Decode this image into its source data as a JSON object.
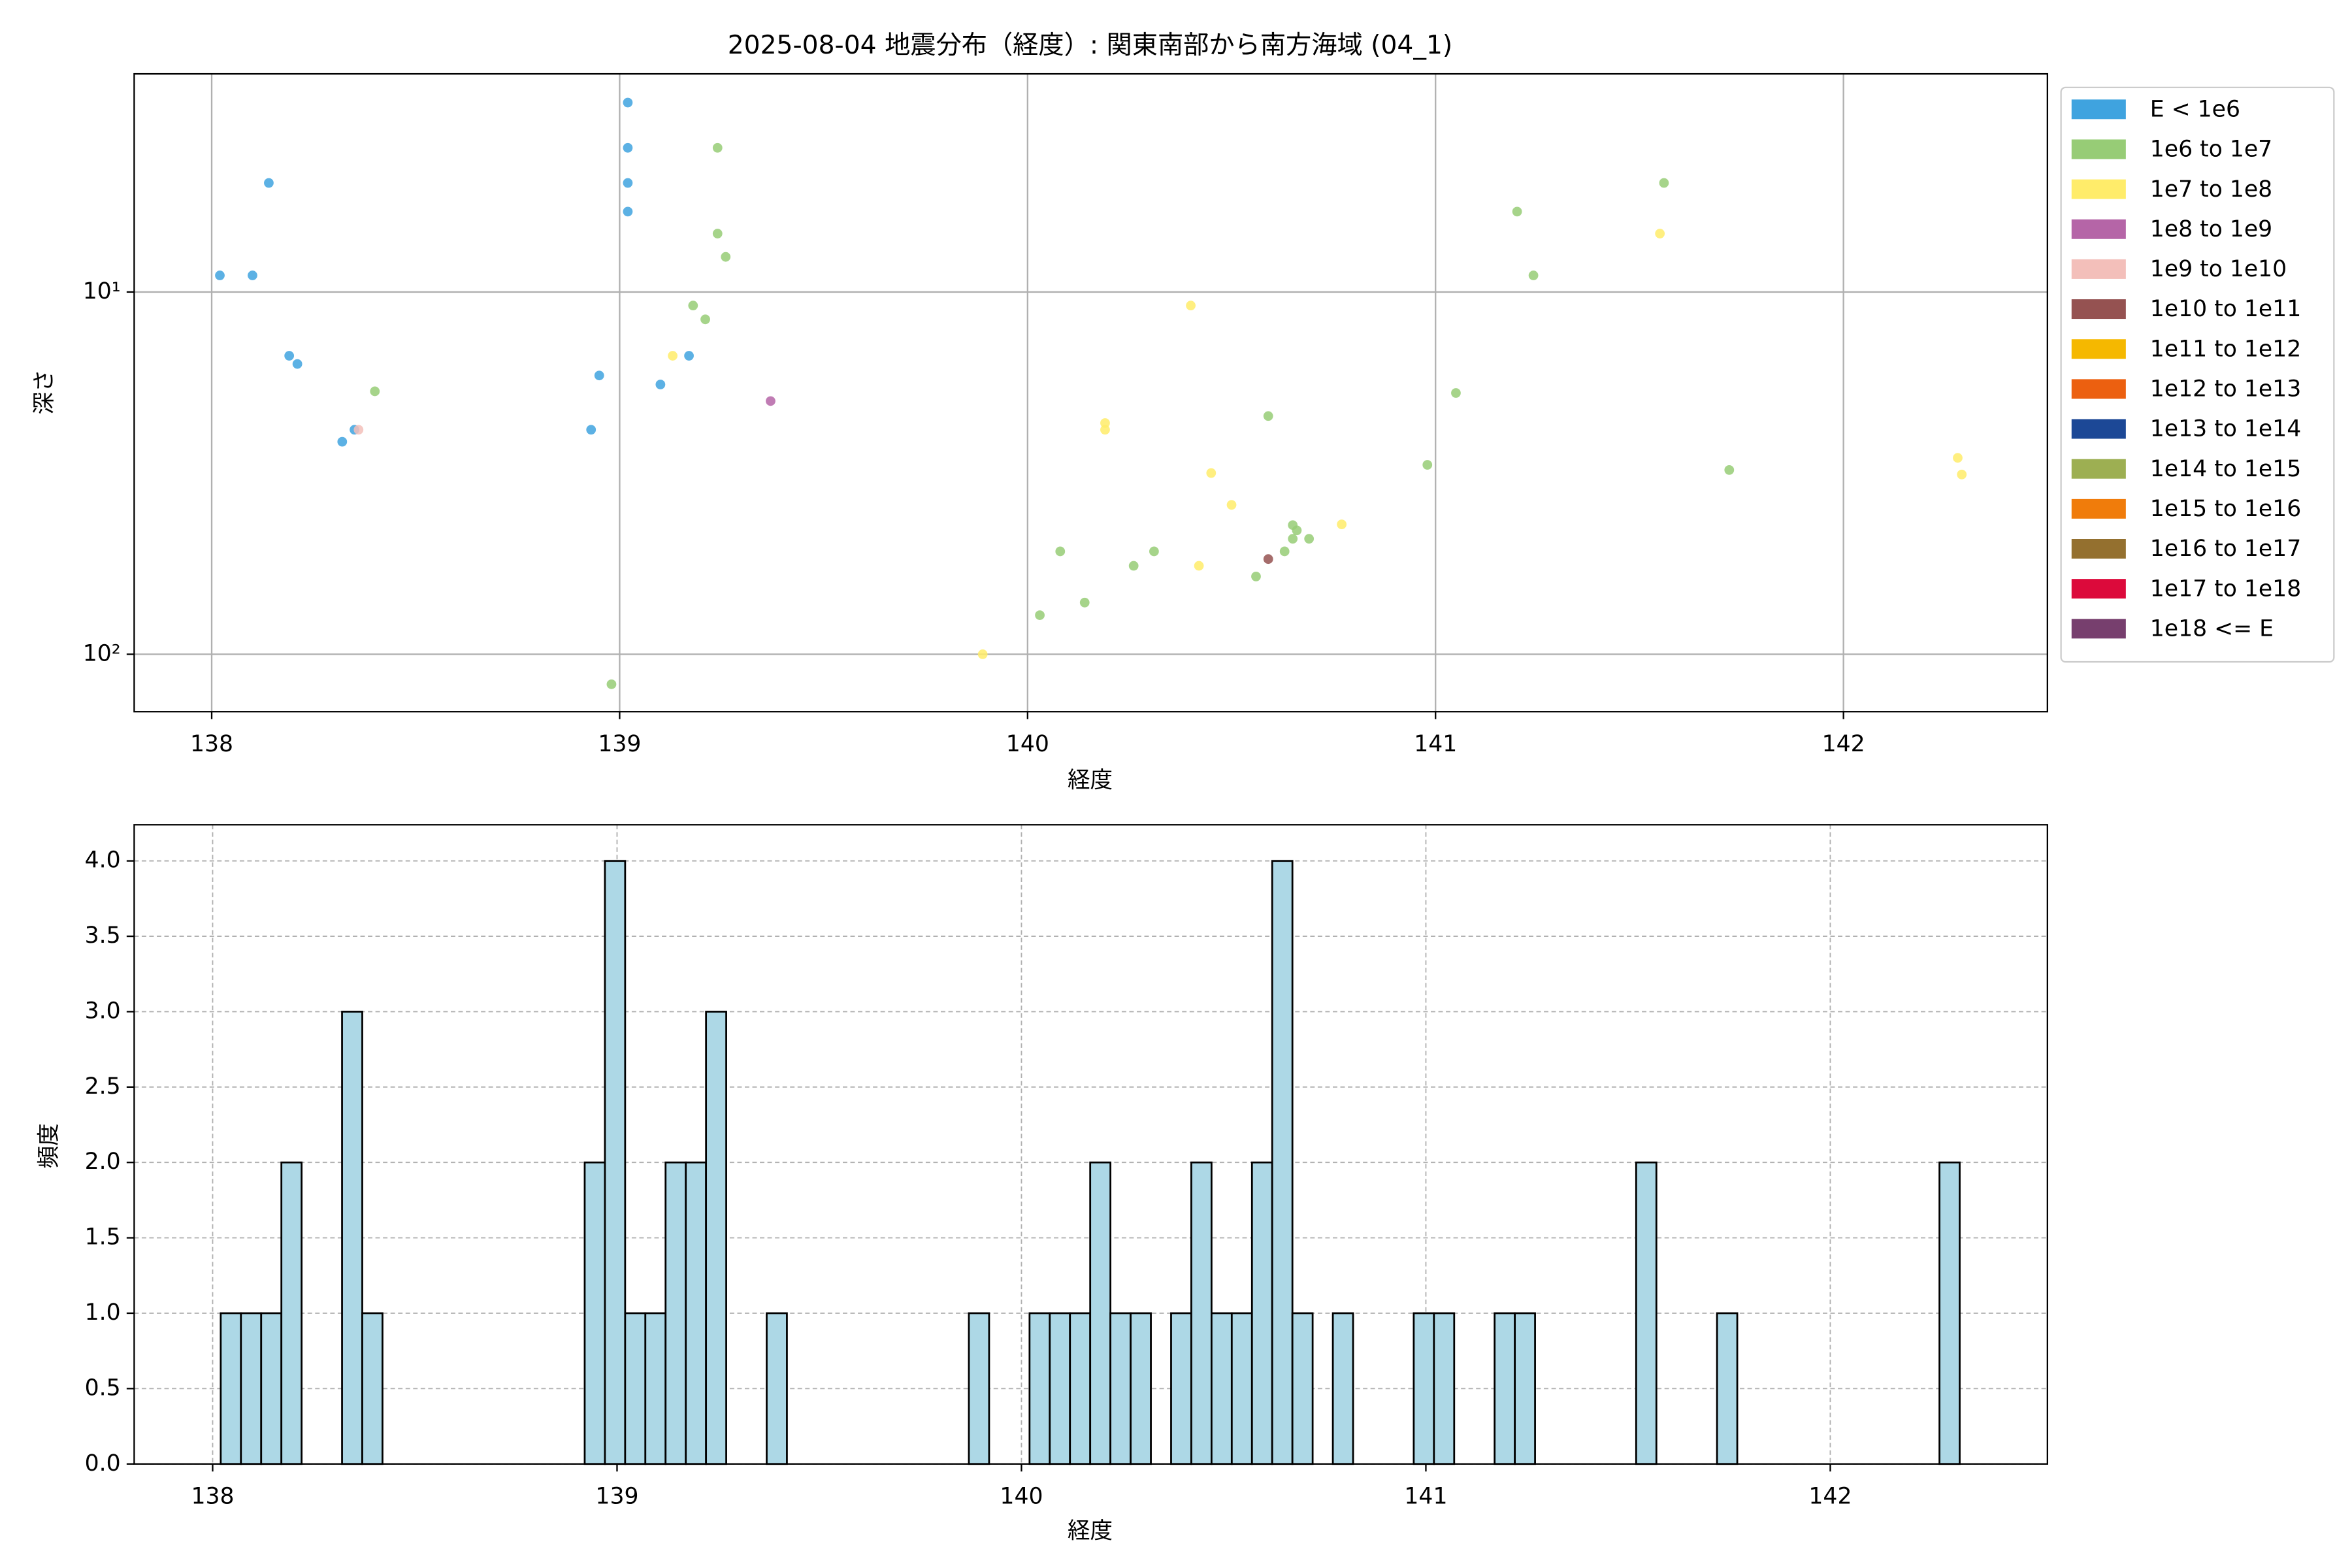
{
  "chart_data": [
    {
      "type": "scatter",
      "title": "2025-08-04 地震分布（経度）: 関東南部から南方海域 (04_1)",
      "xlabel": "経度",
      "ylabel": "深さ",
      "xlim": [
        137.81,
        142.5
      ],
      "xticks": [
        138,
        139,
        140,
        141,
        142
      ],
      "yscale": "log",
      "ylim": [
        144,
        2.5
      ],
      "yticks": [
        {
          "value": 10,
          "label": "10¹"
        },
        {
          "value": 100,
          "label": "10²"
        }
      ],
      "grid": true,
      "legend": "outside right",
      "series": [
        {
          "name": "E < 1e6",
          "color": "#3fa3df",
          "x": [
            138.02,
            138.1,
            138.14,
            138.19,
            138.21,
            138.32,
            138.35,
            138.95,
            138.93,
            139.02,
            139.02,
            139.02,
            139.02,
            139.1,
            139.17
          ],
          "y": [
            9.0,
            9.0,
            5.0,
            15.0,
            15.8,
            25.9,
            24,
            17,
            24,
            3.0,
            4.0,
            5.0,
            6.0,
            18,
            15
          ]
        },
        {
          "name": "1e6 to 1e7",
          "color": "#97cc76",
          "x": [
            138.4,
            139.24,
            139.24,
            139.26,
            139.18,
            139.21,
            138.98,
            140.03,
            140.08,
            140.14,
            140.26,
            140.31,
            140.59,
            140.56,
            140.63,
            140.65,
            140.66,
            140.65,
            140.69,
            140.98,
            141.05,
            141.2,
            141.24,
            141.56,
            141.72
          ],
          "y": [
            18.8,
            4.0,
            6.9,
            8.0,
            10.9,
            11.9,
            121,
            78,
            52,
            72,
            57,
            52,
            22,
            61,
            52,
            44,
            45.5,
            48,
            48,
            30,
            19,
            6.0,
            9.0,
            5.0,
            31
          ]
        },
        {
          "name": "1e7 to 1e8",
          "color": "#ffec6a",
          "x": [
            139.13,
            139.89,
            140.19,
            140.19,
            140.4,
            140.45,
            140.42,
            140.5,
            140.77,
            141.55,
            142.28,
            142.29
          ],
          "y": [
            15,
            100,
            23,
            24,
            10.9,
            31.6,
            57,
            38.7,
            43.8,
            6.9,
            28.7,
            31.9
          ]
        },
        {
          "name": "1e8 to 1e9",
          "color": "#b565a7",
          "x": [
            139.37
          ],
          "y": [
            20
          ]
        },
        {
          "name": "1e9 to 1e10",
          "color": "#f3bfba",
          "x": [
            138.36
          ],
          "y": [
            24
          ]
        },
        {
          "name": "1e10 to 1e11",
          "color": "#955251",
          "x": [
            140.59
          ],
          "y": [
            54.6
          ]
        },
        {
          "name": "1e11 to 1e12",
          "color": "#f5b800",
          "x": [],
          "y": []
        },
        {
          "name": "1e12 to 1e13",
          "color": "#ec6010",
          "x": [],
          "y": []
        },
        {
          "name": "1e13 to 1e14",
          "color": "#1c4896",
          "x": [],
          "y": []
        },
        {
          "name": "1e14 to 1e15",
          "color": "#9daf52",
          "x": [],
          "y": []
        },
        {
          "name": "1e15 to 1e16",
          "color": "#f07c0b",
          "x": [],
          "y": []
        },
        {
          "name": "1e16 to 1e17",
          "color": "#94702f",
          "x": [],
          "y": []
        },
        {
          "name": "1e17 to 1e18",
          "color": "#dc0a3b",
          "x": [],
          "y": []
        },
        {
          "name": "1e18 <= E",
          "color": "#773f6e",
          "x": [],
          "y": []
        }
      ]
    },
    {
      "type": "histogram",
      "xlabel": "経度",
      "ylabel": "頻度",
      "xlim": [
        137.806,
        142.537
      ],
      "xticks": [
        138,
        139,
        140,
        141,
        142
      ],
      "ylim": [
        0,
        4.24
      ],
      "yticks": [
        {
          "value": 0,
          "label": "0.0"
        },
        {
          "value": 0.5,
          "label": "0.5"
        },
        {
          "value": 1,
          "label": "1.0"
        },
        {
          "value": 1.5,
          "label": "1.5"
        },
        {
          "value": 2,
          "label": "2.0"
        },
        {
          "value": 2.5,
          "label": "2.5"
        },
        {
          "value": 3,
          "label": "3.0"
        },
        {
          "value": 3.5,
          "label": "3.5"
        },
        {
          "value": 4,
          "label": "4.0"
        }
      ],
      "grid": true,
      "grid_style": "dashed",
      "color": "#add8e6",
      "edgecolor": "#000000",
      "bins": [
        138.02,
        138.07,
        138.12,
        138.17,
        138.22,
        138.27,
        138.32,
        138.37,
        138.42,
        138.47,
        138.52,
        138.57,
        138.62,
        138.67,
        138.72,
        138.77,
        138.82,
        138.87,
        138.92,
        138.97,
        139.02,
        139.07,
        139.12,
        139.17,
        139.22,
        139.27,
        139.32,
        139.37,
        139.42,
        139.47,
        139.52,
        139.57,
        139.62,
        139.67,
        139.72,
        139.77,
        139.82,
        139.87,
        139.92,
        139.97,
        140.02,
        140.07,
        140.12,
        140.17,
        140.22,
        140.27,
        140.32,
        140.37,
        140.42,
        140.47,
        140.52,
        140.57,
        140.62,
        140.67,
        140.72,
        140.77,
        140.82,
        140.87,
        140.92,
        140.97,
        141.02,
        141.07,
        141.12,
        141.17,
        141.22,
        141.27,
        141.32,
        141.37,
        141.42,
        141.47,
        141.52,
        141.57,
        141.62,
        141.67,
        141.72,
        141.77,
        141.82,
        141.87,
        141.92,
        141.97,
        142.02,
        142.07,
        142.12,
        142.17,
        142.22,
        142.27,
        142.32
      ],
      "values": [
        1,
        1,
        1,
        2,
        0,
        0,
        3,
        1,
        0,
        0,
        0,
        0,
        0,
        0,
        0,
        0,
        0,
        0,
        2,
        4,
        1,
        1,
        2,
        2,
        3,
        0,
        0,
        1,
        0,
        0,
        0,
        0,
        0,
        0,
        0,
        0,
        0,
        1,
        0,
        0,
        1,
        1,
        1,
        2,
        1,
        1,
        0,
        1,
        2,
        1,
        1,
        2,
        4,
        1,
        0,
        1,
        0,
        0,
        0,
        1,
        1,
        0,
        0,
        1,
        1,
        0,
        0,
        0,
        0,
        0,
        2,
        0,
        0,
        0,
        1,
        0,
        0,
        0,
        0,
        0,
        0,
        0,
        0,
        0,
        0,
        2
      ]
    }
  ]
}
